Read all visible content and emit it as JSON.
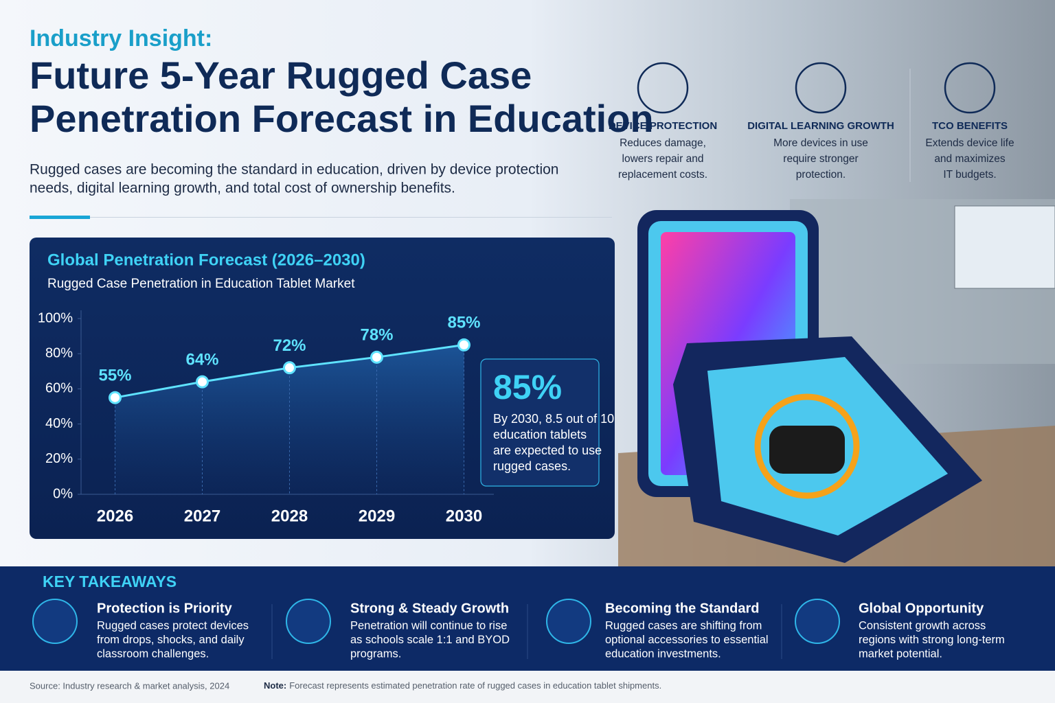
{
  "header": {
    "kicker": "Industry Insight:",
    "title_lines": [
      "Future 5-Year Rugged Case",
      "Penetration Forecast in Education"
    ],
    "intro_lines": [
      "Rugged cases are becoming the standard in education, driven by device protection",
      "needs, digital learning growth, and total cost of ownership benefits."
    ]
  },
  "features": [
    {
      "title": "DEVICE PROTECTION",
      "lines": [
        "Reduces damage,",
        "lowers repair and",
        "replacement costs."
      ]
    },
    {
      "title": "DIGITAL LEARNING GROWTH",
      "lines": [
        "More devices in use",
        "require stronger",
        "protection."
      ]
    },
    {
      "title": "TCO BENEFITS",
      "lines": [
        "Extends device life",
        "and maximizes",
        "IT budgets."
      ]
    }
  ],
  "chart_data": {
    "type": "line",
    "title": "Global Penetration Forecast (2026–2030)",
    "subtitle": "Rugged Case Penetration in Education Tablet Market",
    "categories": [
      "2026",
      "2027",
      "2028",
      "2029",
      "2030"
    ],
    "series": [
      {
        "color": "#5fe3ff",
        "values": [
          55,
          64,
          72,
          78,
          85
        ],
        "value_labels": [
          "55%",
          "64%",
          "72%",
          "78%",
          "85%"
        ]
      }
    ],
    "ylim": [
      0,
      100
    ],
    "yticks": [
      {
        "value": 0,
        "label": "0%"
      },
      {
        "value": 20,
        "label": "20%"
      },
      {
        "value": 40,
        "label": "40%"
      },
      {
        "value": 60,
        "label": "60%"
      },
      {
        "value": 80,
        "label": "80%"
      },
      {
        "value": 100,
        "label": "100%"
      }
    ],
    "grid": false
  },
  "callout": {
    "value": "85%",
    "lines": [
      "By 2030, 8.5 out of 10",
      "education tablets",
      "are expected to use",
      "rugged cases."
    ]
  },
  "takeaways": {
    "heading": "KEY TAKEAWAYS",
    "items": [
      {
        "title": "Protection is Priority",
        "lines": [
          "Rugged cases protect devices",
          "from drops, shocks, and daily",
          "classroom challenges."
        ]
      },
      {
        "title": "Strong & Steady Growth",
        "lines": [
          "Penetration will continue to rise",
          "as schools scale 1:1 and BYOD",
          "programs."
        ]
      },
      {
        "title": "Becoming the Standard",
        "lines": [
          "Rugged cases are shifting from",
          "optional accessories to essential",
          "education investments."
        ]
      },
      {
        "title": "Global Opportunity",
        "lines": [
          "Consistent growth across",
          "regions with strong long-term",
          "market potential."
        ]
      }
    ]
  },
  "footer": {
    "source": "Source: Industry research & market analysis, 2024",
    "note_label": "Note:",
    "note": "Forecast represents estimated penetration rate of rugged cases in education tablet shipments."
  }
}
